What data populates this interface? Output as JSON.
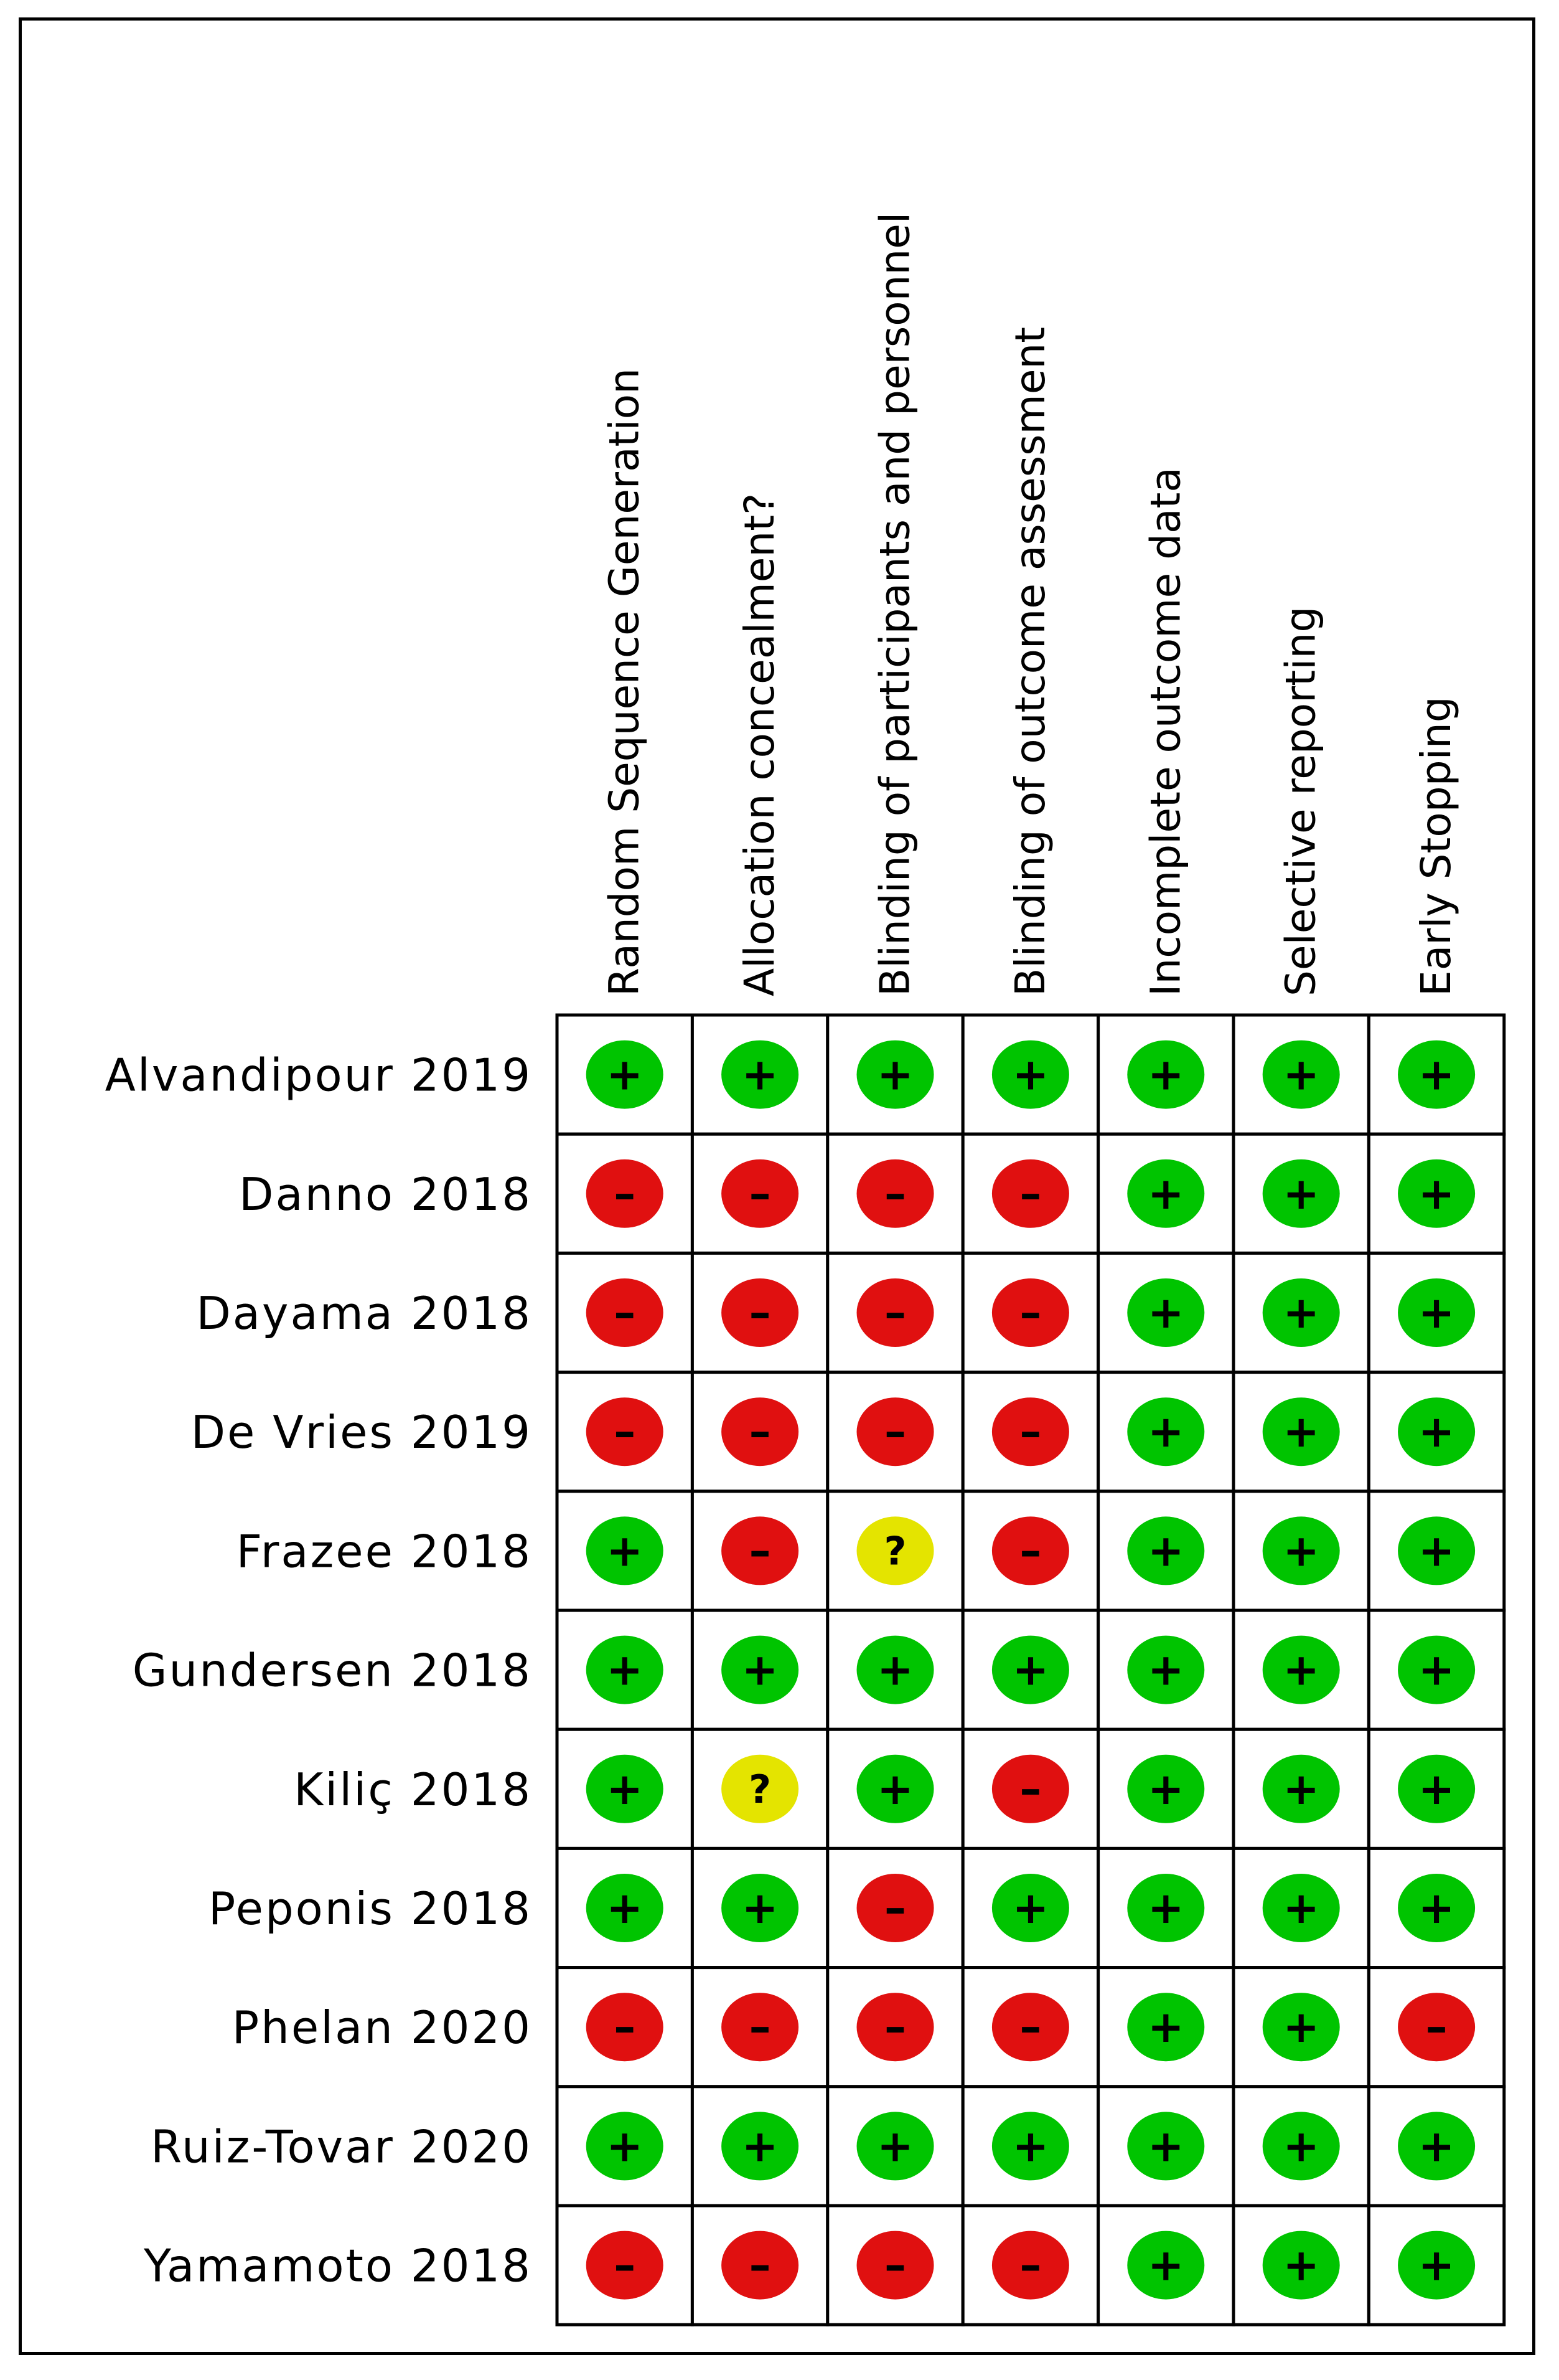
{
  "colors": {
    "low": "#00c400",
    "high": "#e01010",
    "unclear": "#e4e400",
    "border": "#000000"
  },
  "symbols": {
    "low": "+",
    "high": "–",
    "unclear": "?"
  },
  "chart_data": {
    "type": "table",
    "domains": [
      "Random Sequence Generation",
      "Allocation concealment?",
      "Blinding of participants and personnel",
      "Blinding of outcome assessment",
      "Incomplete outcome data",
      "Selective reporting",
      "Early Stopping"
    ],
    "studies": [
      {
        "name": "Alvandipour 2019",
        "ratings": [
          "low",
          "low",
          "low",
          "low",
          "low",
          "low",
          "low"
        ]
      },
      {
        "name": "Danno 2018",
        "ratings": [
          "high",
          "high",
          "high",
          "high",
          "low",
          "low",
          "low"
        ]
      },
      {
        "name": "Dayama 2018",
        "ratings": [
          "high",
          "high",
          "high",
          "high",
          "low",
          "low",
          "low"
        ]
      },
      {
        "name": "De Vries 2019",
        "ratings": [
          "high",
          "high",
          "high",
          "high",
          "low",
          "low",
          "low"
        ]
      },
      {
        "name": "Frazee 2018",
        "ratings": [
          "low",
          "high",
          "unclear",
          "high",
          "low",
          "low",
          "low"
        ]
      },
      {
        "name": "Gundersen 2018",
        "ratings": [
          "low",
          "low",
          "low",
          "low",
          "low",
          "low",
          "low"
        ]
      },
      {
        "name": "Kiliç 2018",
        "ratings": [
          "low",
          "unclear",
          "low",
          "high",
          "low",
          "low",
          "low"
        ]
      },
      {
        "name": "Peponis 2018",
        "ratings": [
          "low",
          "low",
          "high",
          "low",
          "low",
          "low",
          "low"
        ]
      },
      {
        "name": "Phelan 2020",
        "ratings": [
          "high",
          "high",
          "high",
          "high",
          "low",
          "low",
          "high"
        ]
      },
      {
        "name": "Ruiz-Tovar 2020",
        "ratings": [
          "low",
          "low",
          "low",
          "low",
          "low",
          "low",
          "low"
        ]
      },
      {
        "name": "Yamamoto 2018",
        "ratings": [
          "high",
          "high",
          "high",
          "high",
          "low",
          "low",
          "low"
        ]
      }
    ]
  }
}
